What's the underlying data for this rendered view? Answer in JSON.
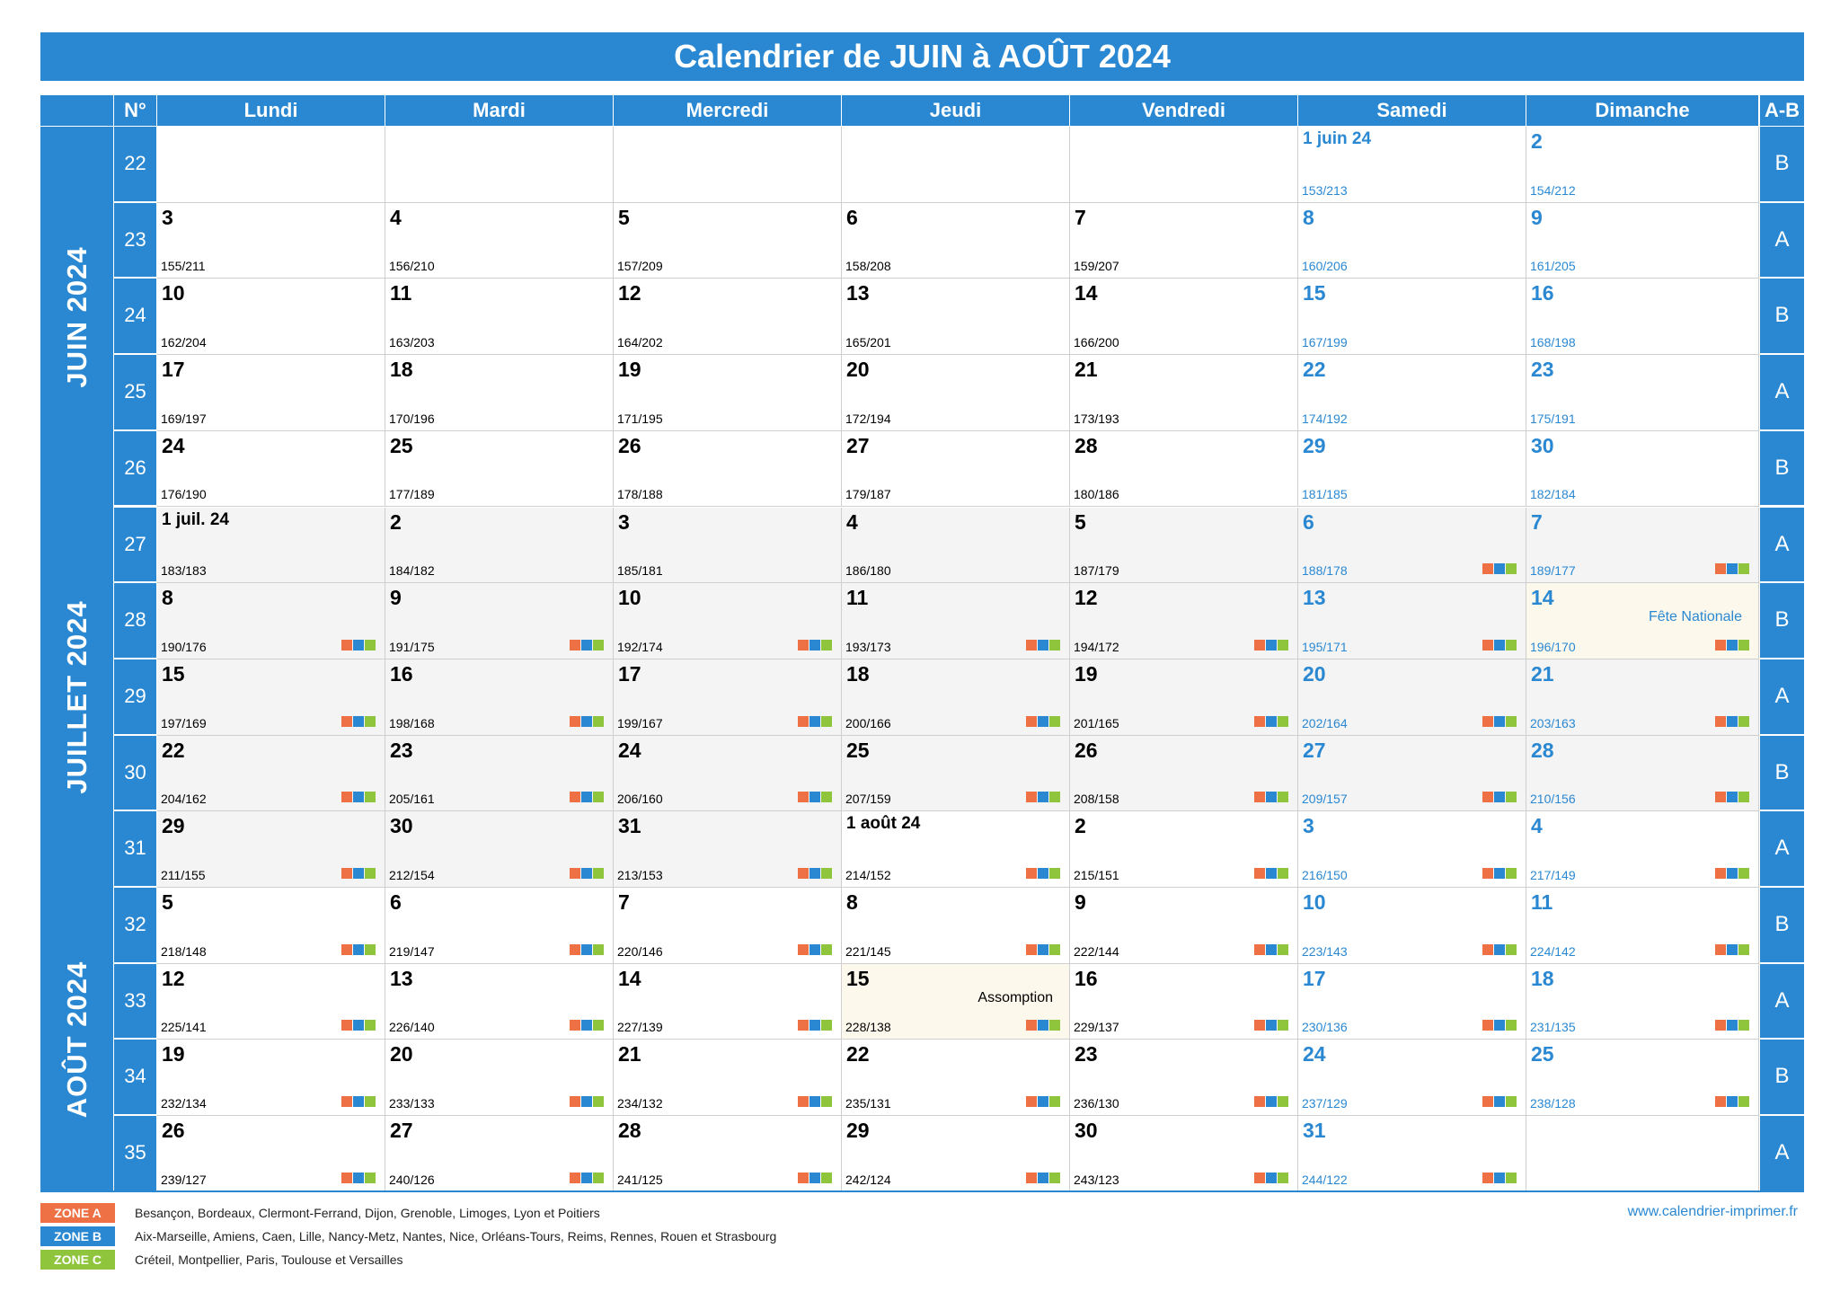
{
  "title": "Calendrier de JUIN à AOÛT 2024",
  "headers": {
    "num": "N°",
    "days": [
      "Lundi",
      "Mardi",
      "Mercredi",
      "Jeudi",
      "Vendredi",
      "Samedi",
      "Dimanche"
    ],
    "ab": "A-B"
  },
  "months": [
    {
      "label": "JUIN 2024"
    },
    {
      "label": "JUILLET 2024"
    },
    {
      "label": "AOÛT 2024"
    }
  ],
  "weeks": [
    {
      "num": "22",
      "ab": "B",
      "days": [
        null,
        null,
        null,
        null,
        null,
        {
          "d": "1 juin 24",
          "n": "153/213"
        },
        {
          "d": "2",
          "n": "154/212"
        }
      ]
    },
    {
      "num": "23",
      "ab": "A",
      "days": [
        {
          "d": "3",
          "n": "155/211"
        },
        {
          "d": "4",
          "n": "156/210"
        },
        {
          "d": "5",
          "n": "157/209"
        },
        {
          "d": "6",
          "n": "158/208"
        },
        {
          "d": "7",
          "n": "159/207"
        },
        {
          "d": "8",
          "n": "160/206"
        },
        {
          "d": "9",
          "n": "161/205"
        }
      ]
    },
    {
      "num": "24",
      "ab": "B",
      "days": [
        {
          "d": "10",
          "n": "162/204"
        },
        {
          "d": "11",
          "n": "163/203"
        },
        {
          "d": "12",
          "n": "164/202"
        },
        {
          "d": "13",
          "n": "165/201"
        },
        {
          "d": "14",
          "n": "166/200"
        },
        {
          "d": "15",
          "n": "167/199"
        },
        {
          "d": "16",
          "n": "168/198"
        }
      ]
    },
    {
      "num": "25",
      "ab": "A",
      "days": [
        {
          "d": "17",
          "n": "169/197"
        },
        {
          "d": "18",
          "n": "170/196"
        },
        {
          "d": "19",
          "n": "171/195"
        },
        {
          "d": "20",
          "n": "172/194"
        },
        {
          "d": "21",
          "n": "173/193"
        },
        {
          "d": "22",
          "n": "174/192"
        },
        {
          "d": "23",
          "n": "175/191"
        }
      ]
    },
    {
      "num": "26",
      "ab": "B",
      "days": [
        {
          "d": "24",
          "n": "176/190"
        },
        {
          "d": "25",
          "n": "177/189"
        },
        {
          "d": "26",
          "n": "178/188"
        },
        {
          "d": "27",
          "n": "179/187"
        },
        {
          "d": "28",
          "n": "180/186"
        },
        {
          "d": "29",
          "n": "181/185"
        },
        {
          "d": "30",
          "n": "182/184"
        }
      ]
    },
    {
      "num": "27",
      "ab": "A",
      "days": [
        {
          "d": "1 juil. 24",
          "n": "183/183",
          "shade": true
        },
        {
          "d": "2",
          "n": "184/182",
          "shade": true
        },
        {
          "d": "3",
          "n": "185/181",
          "shade": true
        },
        {
          "d": "4",
          "n": "186/180",
          "shade": true
        },
        {
          "d": "5",
          "n": "187/179",
          "shade": true
        },
        {
          "d": "6",
          "n": "188/178",
          "shade": true,
          "z": true
        },
        {
          "d": "7",
          "n": "189/177",
          "shade": true,
          "z": true
        }
      ]
    },
    {
      "num": "28",
      "ab": "B",
      "days": [
        {
          "d": "8",
          "n": "190/176",
          "shade": true,
          "z": true
        },
        {
          "d": "9",
          "n": "191/175",
          "shade": true,
          "z": true
        },
        {
          "d": "10",
          "n": "192/174",
          "shade": true,
          "z": true
        },
        {
          "d": "11",
          "n": "193/173",
          "shade": true,
          "z": true
        },
        {
          "d": "12",
          "n": "194/172",
          "shade": true,
          "z": true
        },
        {
          "d": "13",
          "n": "195/171",
          "shade": true,
          "z": true
        },
        {
          "d": "14",
          "n": "196/170",
          "holiday": "Fête Nationale",
          "z": true
        }
      ]
    },
    {
      "num": "29",
      "ab": "A",
      "days": [
        {
          "d": "15",
          "n": "197/169",
          "shade": true,
          "z": true
        },
        {
          "d": "16",
          "n": "198/168",
          "shade": true,
          "z": true
        },
        {
          "d": "17",
          "n": "199/167",
          "shade": true,
          "z": true
        },
        {
          "d": "18",
          "n": "200/166",
          "shade": true,
          "z": true
        },
        {
          "d": "19",
          "n": "201/165",
          "shade": true,
          "z": true
        },
        {
          "d": "20",
          "n": "202/164",
          "shade": true,
          "z": true
        },
        {
          "d": "21",
          "n": "203/163",
          "shade": true,
          "z": true
        }
      ]
    },
    {
      "num": "30",
      "ab": "B",
      "days": [
        {
          "d": "22",
          "n": "204/162",
          "shade": true,
          "z": true
        },
        {
          "d": "23",
          "n": "205/161",
          "shade": true,
          "z": true
        },
        {
          "d": "24",
          "n": "206/160",
          "shade": true,
          "z": true
        },
        {
          "d": "25",
          "n": "207/159",
          "shade": true,
          "z": true
        },
        {
          "d": "26",
          "n": "208/158",
          "shade": true,
          "z": true
        },
        {
          "d": "27",
          "n": "209/157",
          "shade": true,
          "z": true
        },
        {
          "d": "28",
          "n": "210/156",
          "shade": true,
          "z": true
        }
      ]
    },
    {
      "num": "31",
      "ab": "A",
      "days": [
        {
          "d": "29",
          "n": "211/155",
          "shade": true,
          "z": true
        },
        {
          "d": "30",
          "n": "212/154",
          "shade": true,
          "z": true
        },
        {
          "d": "31",
          "n": "213/153",
          "shade": true,
          "z": true
        },
        {
          "d": "1 août 24",
          "n": "214/152",
          "z": true
        },
        {
          "d": "2",
          "n": "215/151",
          "z": true
        },
        {
          "d": "3",
          "n": "216/150",
          "z": true
        },
        {
          "d": "4",
          "n": "217/149",
          "z": true
        }
      ]
    },
    {
      "num": "32",
      "ab": "B",
      "days": [
        {
          "d": "5",
          "n": "218/148",
          "z": true
        },
        {
          "d": "6",
          "n": "219/147",
          "z": true
        },
        {
          "d": "7",
          "n": "220/146",
          "z": true
        },
        {
          "d": "8",
          "n": "221/145",
          "z": true
        },
        {
          "d": "9",
          "n": "222/144",
          "z": true
        },
        {
          "d": "10",
          "n": "223/143",
          "z": true
        },
        {
          "d": "11",
          "n": "224/142",
          "z": true
        }
      ]
    },
    {
      "num": "33",
      "ab": "A",
      "days": [
        {
          "d": "12",
          "n": "225/141",
          "z": true
        },
        {
          "d": "13",
          "n": "226/140",
          "z": true
        },
        {
          "d": "14",
          "n": "227/139",
          "z": true
        },
        {
          "d": "15",
          "n": "228/138",
          "holiday": "Assomption",
          "z": true
        },
        {
          "d": "16",
          "n": "229/137",
          "z": true
        },
        {
          "d": "17",
          "n": "230/136",
          "z": true
        },
        {
          "d": "18",
          "n": "231/135",
          "z": true
        }
      ]
    },
    {
      "num": "34",
      "ab": "B",
      "days": [
        {
          "d": "19",
          "n": "232/134",
          "z": true
        },
        {
          "d": "20",
          "n": "233/133",
          "z": true
        },
        {
          "d": "21",
          "n": "234/132",
          "z": true
        },
        {
          "d": "22",
          "n": "235/131",
          "z": true
        },
        {
          "d": "23",
          "n": "236/130",
          "z": true
        },
        {
          "d": "24",
          "n": "237/129",
          "z": true
        },
        {
          "d": "25",
          "n": "238/128",
          "z": true
        }
      ]
    },
    {
      "num": "35",
      "ab": "A",
      "days": [
        {
          "d": "26",
          "n": "239/127",
          "z": true
        },
        {
          "d": "27",
          "n": "240/126",
          "z": true
        },
        {
          "d": "28",
          "n": "241/125",
          "z": true
        },
        {
          "d": "29",
          "n": "242/124",
          "z": true
        },
        {
          "d": "30",
          "n": "243/123",
          "z": true
        },
        {
          "d": "31",
          "n": "244/122",
          "z": true
        },
        null
      ]
    }
  ],
  "legend": [
    {
      "tag": "ZONE A",
      "color": "#ed7144",
      "text": "Besançon, Bordeaux, Clermont-Ferrand, Dijon, Grenoble, Limoges, Lyon et Poitiers"
    },
    {
      "tag": "ZONE B",
      "color": "#2a88d2",
      "text": "Aix-Marseille, Amiens, Caen, Lille, Nancy-Metz, Nantes, Nice, Orléans-Tours, Reims, Rennes, Rouen et Strasbourg"
    },
    {
      "tag": "ZONE C",
      "color": "#8fc43d",
      "text": "Créteil, Montpellier, Paris, Toulouse et Versailles"
    }
  ],
  "website": "www.calendrier-imprimer.fr",
  "colors": {
    "accent": "#2a88d2",
    "zoneA": "#ed7144",
    "zoneB": "#2a88d2",
    "zoneC": "#8fc43d"
  }
}
